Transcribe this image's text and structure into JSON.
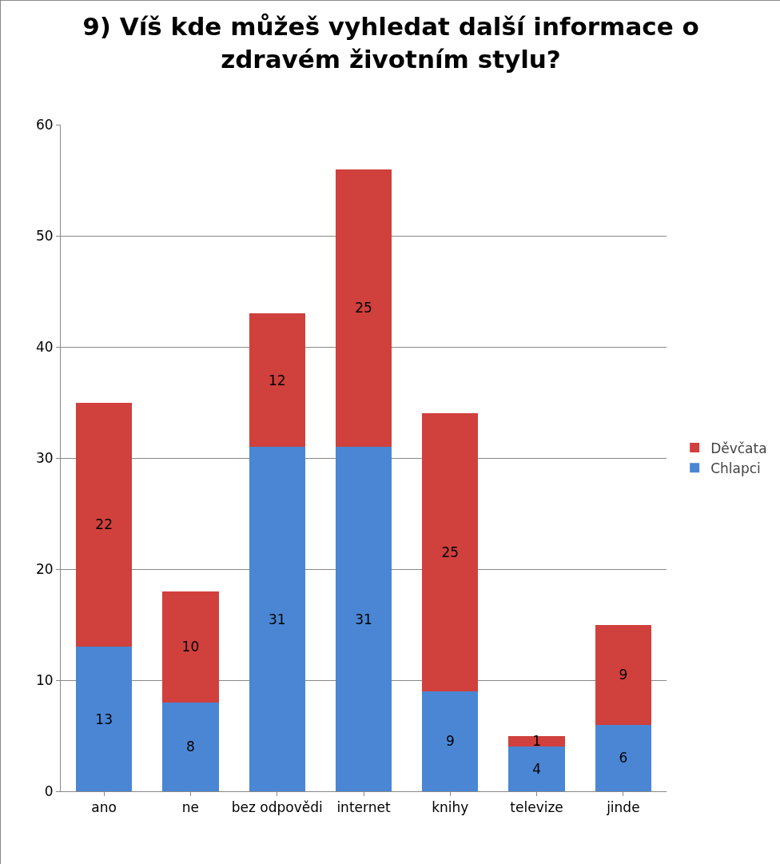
{
  "chart_data": {
    "type": "bar",
    "title": "9) Víš kde můžeš vyhledat další informace o zdravém životním stylu?",
    "categories": [
      "ano",
      "ne",
      "bez odpovědi",
      "internet",
      "knihy",
      "televize",
      "jinde"
    ],
    "stacked": true,
    "series": [
      {
        "name": "Chlapci",
        "color": "#4a86d4",
        "values": [
          13,
          8,
          31,
          31,
          9,
          4,
          6
        ]
      },
      {
        "name": "Děvčata",
        "color": "#d0403c",
        "values": [
          22,
          10,
          12,
          25,
          25,
          1,
          9
        ]
      }
    ],
    "ylim": [
      0,
      60
    ],
    "yticks": [
      0,
      10,
      20,
      30,
      40,
      50,
      60
    ],
    "grid": "y",
    "legend": "right",
    "data_labels": true
  }
}
